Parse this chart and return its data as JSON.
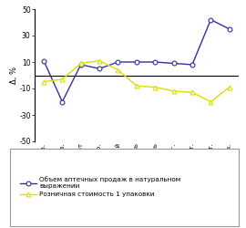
{
  "months": [
    "янв.",
    "фев.",
    "март",
    "апр.",
    "май",
    "июнь",
    "июль",
    "авг.",
    "сент.",
    "окт.",
    "ноя."
  ],
  "series1_label": "Объем аптечных продаж в натуральном\nвыражении",
  "series2_label": "Розничная стоимость 1 упаковки",
  "series1_values": [
    11,
    -20,
    8,
    5,
    10,
    10,
    10,
    9,
    8,
    42,
    35
  ],
  "series2_values": [
    -5,
    -3,
    9,
    11,
    4,
    -8,
    -9,
    -12,
    -13,
    -20,
    -9
  ],
  "series1_color": "#333399",
  "series2_color": "#dddd00",
  "ylim": [
    -50,
    50
  ],
  "yticks": [
    -50,
    -30,
    -10,
    10,
    30,
    50
  ],
  "ylabel": "Δ, %",
  "background_color": "#ffffff"
}
